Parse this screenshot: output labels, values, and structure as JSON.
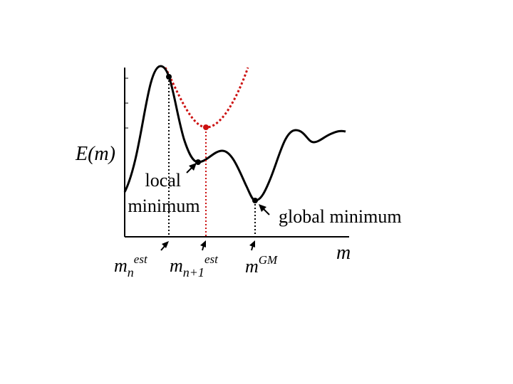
{
  "axes": {
    "y_label": "E(m)",
    "x_label": "m"
  },
  "annotations": {
    "local_minimum": "local\nminimum",
    "global_minimum": "global minimum"
  },
  "x_markers": {
    "m_n_est": {
      "base": "m",
      "sub": "n",
      "sup": "est"
    },
    "m_n1_est": {
      "base": "m",
      "sub": "n+1",
      "sup": "est"
    },
    "m_gm": {
      "base": "m",
      "sup": "GM"
    }
  },
  "colors": {
    "energy_curve": "#000000",
    "quadratic_approx": "#cc1111",
    "axes": "#000000"
  }
}
